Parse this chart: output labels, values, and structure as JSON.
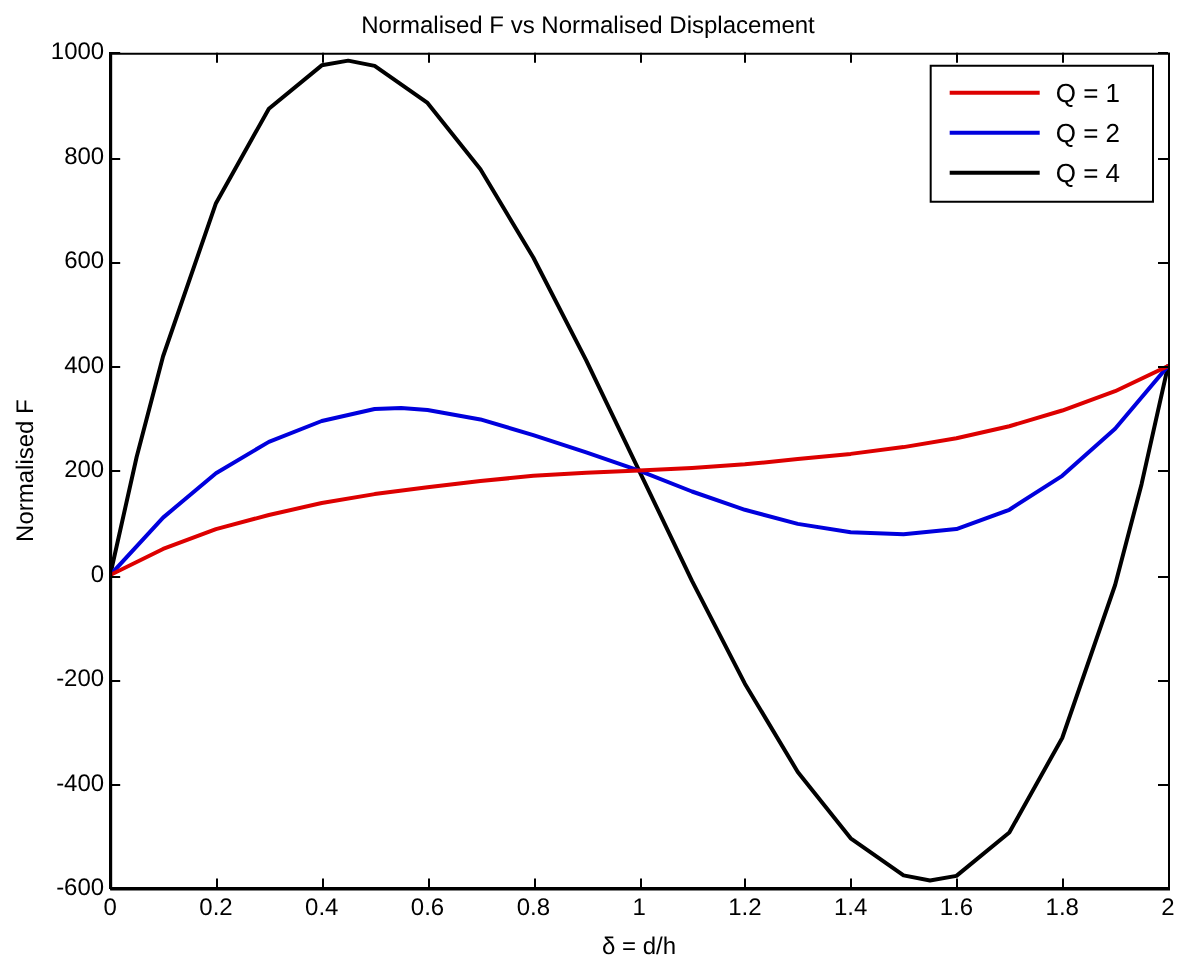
{
  "chart_data": {
    "type": "line",
    "title": "Normalised F vs Normalised Displacement",
    "xlabel": "δ = d/h",
    "ylabel": "Normalised F",
    "xlim": [
      0,
      2
    ],
    "xticks": [
      0,
      0.2,
      0.4,
      0.6,
      0.8,
      1,
      1.2,
      1.4,
      1.6,
      1.8,
      2
    ],
    "ylim": [
      -600,
      1000
    ],
    "yticks": [
      -600,
      -400,
      -200,
      0,
      200,
      400,
      600,
      800,
      1000
    ],
    "grid": false,
    "legend": "top right",
    "marker": "none",
    "line_style": "solid",
    "series": [
      {
        "name": "Q = 1",
        "color": "#dd0000",
        "x": [
          0,
          0.1,
          0.2,
          0.3,
          0.4,
          0.5,
          0.6,
          0.7,
          0.8,
          0.9,
          1,
          1.1,
          1.2,
          1.3,
          1.4,
          1.5,
          1.6,
          1.7,
          1.8,
          1.9,
          2
        ],
        "values": [
          0,
          50,
          88,
          115,
          138,
          155,
          168,
          180,
          190,
          196,
          200,
          205,
          212,
          222,
          232,
          245,
          262,
          285,
          315,
          352,
          400
        ]
      },
      {
        "name": "Q = 2",
        "color": "#0000dd",
        "x": [
          0,
          0.1,
          0.2,
          0.3,
          0.4,
          0.5,
          0.55,
          0.6,
          0.7,
          0.8,
          0.9,
          1,
          1.1,
          1.2,
          1.3,
          1.4,
          1.5,
          1.6,
          1.7,
          1.8,
          1.9,
          2
        ],
        "values": [
          0,
          110,
          195,
          255,
          295,
          318,
          320,
          316,
          298,
          268,
          235,
          200,
          160,
          125,
          98,
          82,
          78,
          88,
          125,
          190,
          280,
          400
        ]
      },
      {
        "name": "Q = 4",
        "color": "#000000",
        "x": [
          0,
          0.05,
          0.1,
          0.2,
          0.3,
          0.4,
          0.45,
          0.5,
          0.6,
          0.7,
          0.8,
          0.9,
          1,
          1.1,
          1.2,
          1.3,
          1.4,
          1.5,
          1.55,
          1.6,
          1.7,
          1.8,
          1.9,
          1.95,
          2
        ],
        "values": [
          0,
          226,
          419,
          712,
          893,
          976,
          985,
          975,
          904,
          777,
          608,
          411,
          200,
          -11,
          -208,
          -377,
          -504,
          -575,
          -585,
          -576,
          -493,
          -312,
          -19,
          174,
          400
        ]
      }
    ]
  }
}
